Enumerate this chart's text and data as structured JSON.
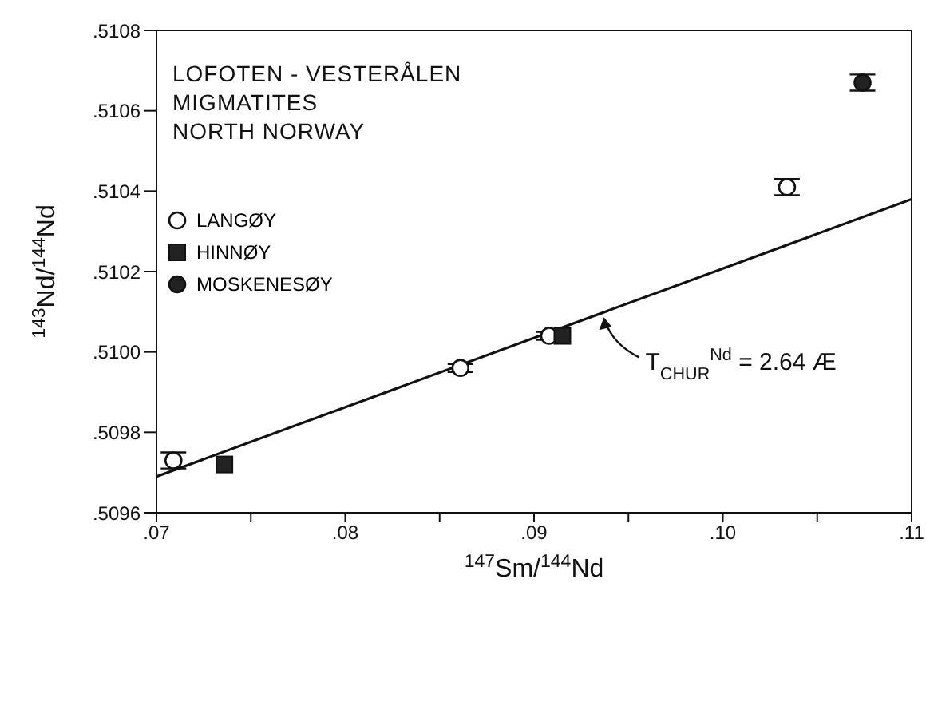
{
  "chart_data": {
    "type": "scatter",
    "annotations": [
      "LOFOTEN - VESTERÅLEN",
      "MIGMATITES",
      "NORTH NORWAY",
      {
        "text": "T$_{CHUR}$$^{Nd}$ = 2.64 Æ",
        "x": 0.0937,
        "y": 0.51009
      }
    ],
    "xlabel": "$^{147}$Sm/$^{144}$Nd",
    "ylabel": "$^{143}$Nd/$^{144}$Nd",
    "xlim": [
      0.07,
      0.11
    ],
    "ylim": [
      0.5096,
      0.5108
    ],
    "xticks": [
      {
        "value": 0.07,
        "label": ".07"
      },
      {
        "value": 0.075,
        "label": null
      },
      {
        "value": 0.08,
        "label": ".08"
      },
      {
        "value": 0.085,
        "label": null
      },
      {
        "value": 0.09,
        "label": ".09"
      },
      {
        "value": 0.095,
        "label": null
      },
      {
        "value": 0.1,
        "label": ".10"
      },
      {
        "value": 0.105,
        "label": null
      },
      {
        "value": 0.11,
        "label": ".11"
      }
    ],
    "yticks": [
      {
        "value": 0.5096,
        "label": ".5096"
      },
      {
        "value": 0.5098,
        "label": ".5098"
      },
      {
        "value": 0.51,
        "label": ".5100"
      },
      {
        "value": 0.5102,
        "label": ".5102"
      },
      {
        "value": 0.5104,
        "label": ".5104"
      },
      {
        "value": 0.5106,
        "label": ".5106"
      },
      {
        "value": 0.5108,
        "label": ".5108"
      }
    ],
    "grid": false,
    "legend": "top left",
    "series": [
      {
        "name": "LANGØY",
        "color": "#ffffff",
        "marker": "circle",
        "x": [
          0.0709,
          0.0861,
          0.0908,
          0.1034
        ],
        "values": [
          0.50973,
          0.50996,
          0.51004,
          0.51041
        ],
        "errors": [
          2e-05,
          1e-05,
          1e-05,
          2e-05
        ]
      },
      {
        "name": "HINNØY",
        "color": "#222222",
        "marker": "square",
        "x": [
          0.0736,
          0.0915
        ],
        "values": [
          0.50972,
          0.51004
        ]
      },
      {
        "name": "MOSKENESØY",
        "color": "#222222",
        "marker": "circle",
        "x": [
          0.1074
        ],
        "values": [
          0.51067
        ],
        "errors": [
          2e-05
        ]
      },
      {
        "type": "line",
        "color": "#111111",
        "marker": "none",
        "x": [
          0.07,
          0.11
        ],
        "values": [
          0.50969,
          0.51038
        ]
      }
    ]
  }
}
